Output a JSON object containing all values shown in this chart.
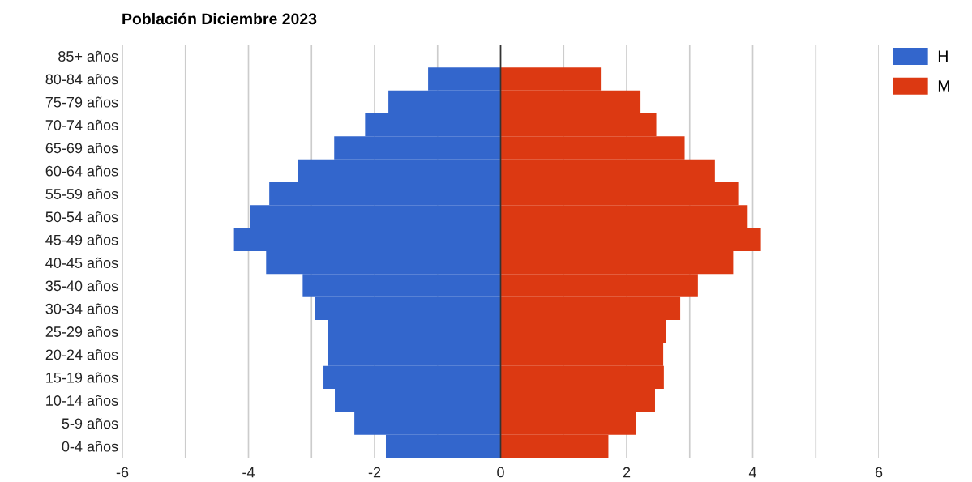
{
  "chart_data": {
    "type": "bar",
    "orientation": "horizontal",
    "title": "Población Diciembre 2023",
    "categories": [
      "85+ años",
      "80-84 años",
      "75-79 años",
      "70-74 años",
      "65-69 años",
      "60-64 años",
      "55-59 años",
      "50-54 años",
      "45-49 años",
      "40-45 años",
      "35-40 años",
      "30-34 años",
      "25-29 años",
      "20-24 años",
      "15-19 años",
      "10-14 años",
      "5-9 años",
      "0-4 años"
    ],
    "series": [
      {
        "name": "H",
        "color": "#3366cc",
        "values": [
          0,
          -1.15,
          -1.78,
          -2.15,
          -2.64,
          -3.22,
          -3.67,
          -3.97,
          -4.23,
          -3.72,
          -3.14,
          -2.95,
          -2.74,
          -2.74,
          -2.81,
          -2.63,
          -2.32,
          -1.82
        ]
      },
      {
        "name": "M",
        "color": "#dc3912",
        "values": [
          0,
          1.59,
          2.22,
          2.47,
          2.92,
          3.4,
          3.77,
          3.92,
          4.13,
          3.69,
          3.13,
          2.85,
          2.62,
          2.58,
          2.59,
          2.45,
          2.15,
          1.71
        ]
      }
    ],
    "xlim": [
      -6,
      6
    ],
    "stacked": true,
    "xticks": [
      -6,
      {
        "value": -5,
        "label": null
      },
      -4,
      {
        "value": -3,
        "label": null
      },
      -2,
      {
        "value": -1,
        "label": null
      },
      0,
      {
        "value": 1,
        "label": null
      },
      2,
      {
        "value": 3,
        "label": null
      },
      4,
      {
        "value": 5,
        "label": null
      },
      6
    ],
    "ref_lines": [
      {
        "axis": "x",
        "value": 0,
        "label": null,
        "color": "#333333"
      }
    ],
    "grid": "x",
    "legend": "top right"
  }
}
